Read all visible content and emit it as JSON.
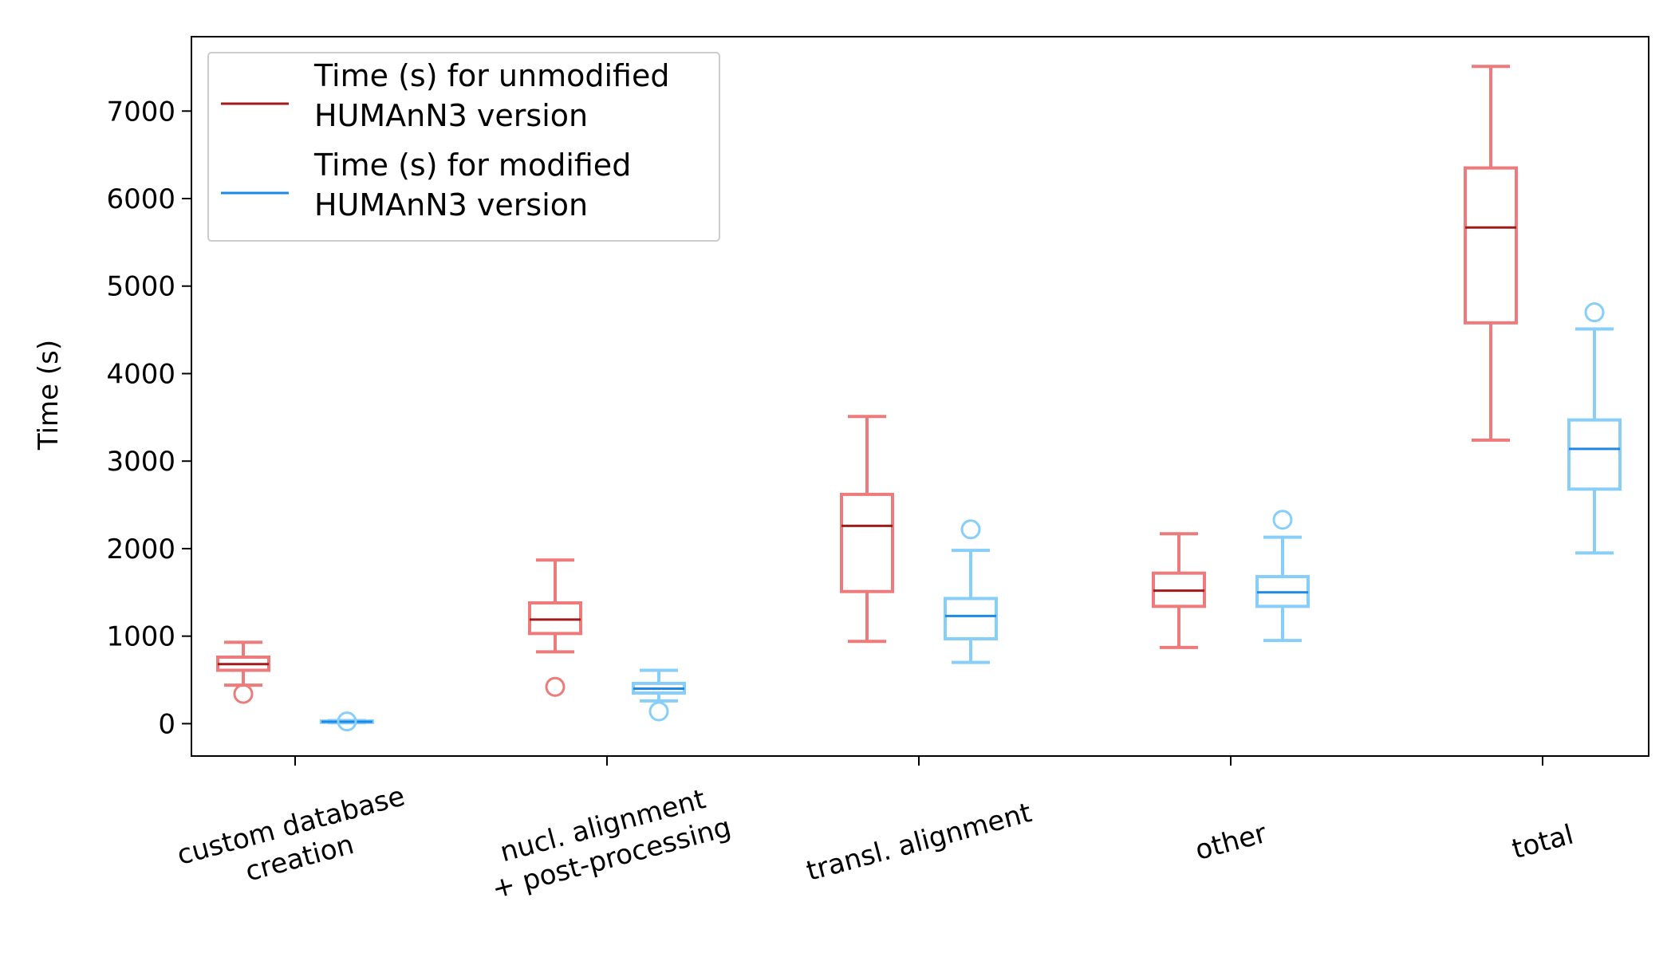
{
  "chart_data": {
    "type": "boxplot",
    "title": "",
    "xlabel": "",
    "ylabel": "Time (s)",
    "ylim": [
      -370,
      7850
    ],
    "yticks": [
      0,
      1000,
      2000,
      3000,
      4000,
      5000,
      6000,
      7000
    ],
    "grid": false,
    "legend_position": "top-left",
    "categories": [
      [
        "custom database",
        "creation"
      ],
      [
        "nucl. alignment",
        "+ post-processing"
      ],
      [
        "transl. alignment"
      ],
      [
        "other"
      ],
      [
        "total"
      ]
    ],
    "series": [
      {
        "name": [
          "Time (s) for unmodified",
          "HUMAnN3 version"
        ],
        "box_color": "#ee7b7b",
        "median_color": "#a11b1b",
        "stats": [
          {
            "whisker_low": 440,
            "q1": 610,
            "median": 680,
            "q3": 760,
            "whisker_high": 930,
            "outliers": [
              340
            ]
          },
          {
            "whisker_low": 820,
            "q1": 1030,
            "median": 1190,
            "q3": 1380,
            "whisker_high": 1870,
            "outliers": [
              420
            ]
          },
          {
            "whisker_low": 940,
            "q1": 1510,
            "median": 2260,
            "q3": 2620,
            "whisker_high": 3510,
            "outliers": []
          },
          {
            "whisker_low": 870,
            "q1": 1340,
            "median": 1520,
            "q3": 1720,
            "whisker_high": 2170,
            "outliers": []
          },
          {
            "whisker_low": 3240,
            "q1": 4580,
            "median": 5670,
            "q3": 6350,
            "whisker_high": 7510,
            "outliers": []
          }
        ]
      },
      {
        "name": [
          "Time (s) for modified",
          "HUMAnN3 version"
        ],
        "box_color": "#87cefa",
        "median_color": "#1e88e5",
        "stats": [
          {
            "whisker_low": 10,
            "q1": 15,
            "median": 22,
            "q3": 30,
            "whisker_high": 35,
            "outliers": [
              25
            ]
          },
          {
            "whisker_low": 260,
            "q1": 350,
            "median": 400,
            "q3": 460,
            "whisker_high": 610,
            "outliers": [
              140
            ]
          },
          {
            "whisker_low": 700,
            "q1": 970,
            "median": 1230,
            "q3": 1430,
            "whisker_high": 1980,
            "outliers": [
              2220
            ]
          },
          {
            "whisker_low": 950,
            "q1": 1340,
            "median": 1500,
            "q3": 1680,
            "whisker_high": 2130,
            "outliers": [
              2330
            ]
          },
          {
            "whisker_low": 1950,
            "q1": 2680,
            "median": 3140,
            "q3": 3470,
            "whisker_high": 4510,
            "outliers": [
              4700
            ]
          }
        ]
      }
    ]
  }
}
